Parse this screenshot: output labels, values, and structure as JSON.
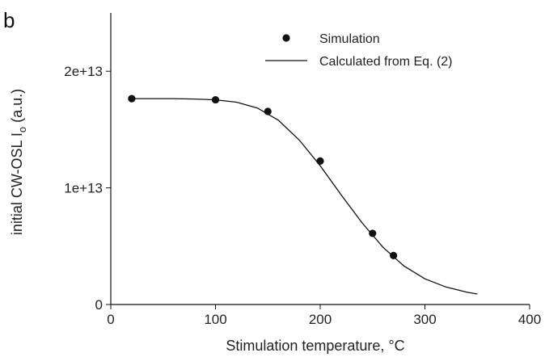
{
  "chart_data": {
    "type": "scatter",
    "panel_label": "b",
    "xlabel": "Stimulation temperature, °C",
    "ylabel": {
      "main": "initial CW-OSL I",
      "subscript": "o",
      "unit": " (a.u.)"
    },
    "xlim": [
      0,
      400
    ],
    "ylim": [
      0,
      25000000000000.0
    ],
    "x_ticks": [
      0,
      100,
      200,
      300,
      400
    ],
    "x_tick_labels": [
      "0",
      "100",
      "200",
      "300",
      "400"
    ],
    "y_ticks": [
      0,
      10000000000000.0,
      20000000000000.0
    ],
    "y_tick_labels": [
      "0",
      "1e+13",
      "2e+13"
    ],
    "grid": false,
    "legend_position": "top-right",
    "series": [
      {
        "name": "Simulation",
        "style": "marker",
        "color": "#111111",
        "x": [
          20,
          100,
          150,
          200,
          250,
          270
        ],
        "y": [
          17650000000000.0,
          17550000000000.0,
          16550000000000.0,
          12300000000000.0,
          6100000000000.0,
          4200000000000.0
        ]
      },
      {
        "name": "Calculated from Eq. (2)",
        "style": "line",
        "color": "#111111",
        "x": [
          20,
          40,
          60,
          80,
          100,
          120,
          140,
          160,
          180,
          200,
          220,
          240,
          260,
          280,
          300,
          320,
          340,
          350
        ],
        "y": [
          17650000000000.0,
          17650000000000.0,
          17650000000000.0,
          17620000000000.0,
          17550000000000.0,
          17350000000000.0,
          16850000000000.0,
          15800000000000.0,
          14100000000000.0,
          11900000000000.0,
          9400000000000.0,
          7000000000000.0,
          4900000000000.0,
          3300000000000.0,
          2200000000000.0,
          1500000000000.0,
          1050000000000.0,
          900000000000.0
        ]
      }
    ]
  }
}
